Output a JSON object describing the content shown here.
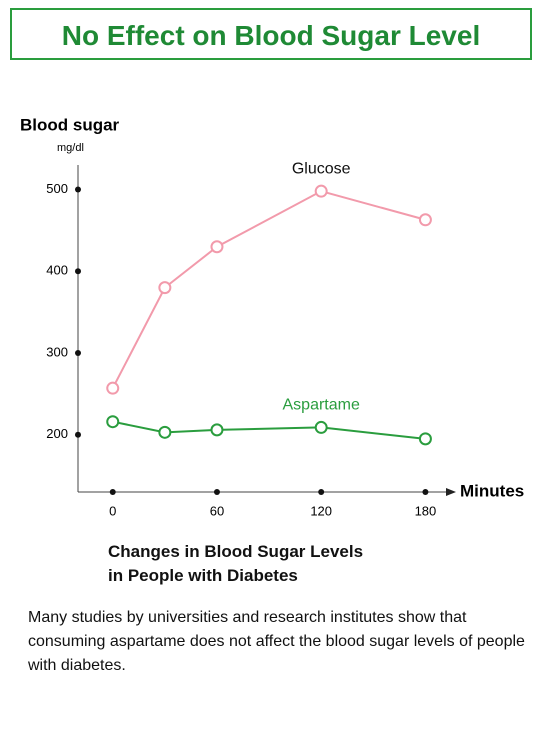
{
  "header": {
    "title": "No Effect on Blood Sugar Level"
  },
  "chart_data": {
    "type": "line",
    "y_label": "Blood sugar",
    "y_unit": "mg/dl",
    "x_label": "Minutes",
    "x": [
      0,
      30,
      60,
      120,
      180
    ],
    "series": [
      {
        "name": "Glucose",
        "color": "#f29aab",
        "values": [
          257,
          380,
          430,
          498,
          463
        ]
      },
      {
        "name": "Aspartame",
        "color": "#2a9d3e",
        "values": [
          216,
          203,
          206,
          209,
          195
        ]
      }
    ],
    "xlim": [
      -20,
      193
    ],
    "ylim": [
      130,
      530
    ],
    "xticks": [
      0,
      60,
      120,
      180
    ],
    "yticks": [
      200,
      300,
      400,
      500
    ],
    "caption": [
      "Changes in Blood Sugar Levels",
      "in People with Diabetes"
    ]
  },
  "description": "Many studies by universities and research institutes show that consuming aspartame does not affect the blood sugar levels of people with diabetes."
}
